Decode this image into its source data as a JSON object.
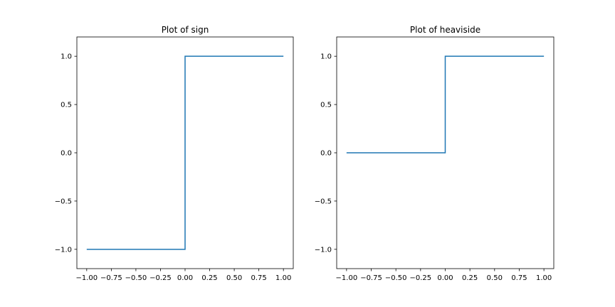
{
  "chart_data": [
    {
      "type": "line",
      "title": "Plot of sign",
      "xlabel": "",
      "ylabel": "",
      "xlim": [
        -1.1,
        1.1
      ],
      "ylim": [
        -1.2,
        1.2
      ],
      "x_ticks": [
        -1.0,
        -0.75,
        -0.5,
        -0.25,
        0.0,
        0.25,
        0.5,
        0.75,
        1.0
      ],
      "x_tick_labels": [
        "−1.00",
        "−0.75",
        "−0.50",
        "−0.25",
        "0.00",
        "0.25",
        "0.50",
        "0.75",
        "1.00"
      ],
      "y_ticks": [
        -1.0,
        -0.5,
        0.0,
        0.5,
        1.0
      ],
      "y_tick_labels": [
        "−1.0",
        "−0.5",
        "0.0",
        "0.5",
        "1.0"
      ],
      "grid": false,
      "series": [
        {
          "x": [
            -1.0,
            0.0,
            0.0,
            1.0
          ],
          "y": [
            -1.0,
            -1.0,
            1.0,
            1.0
          ],
          "color": "#1f77b4"
        }
      ]
    },
    {
      "type": "line",
      "title": "Plot of heaviside",
      "xlabel": "",
      "ylabel": "",
      "xlim": [
        -1.1,
        1.1
      ],
      "ylim": [
        -1.2,
        1.2
      ],
      "x_ticks": [
        -1.0,
        -0.75,
        -0.5,
        -0.25,
        0.0,
        0.25,
        0.5,
        0.75,
        1.0
      ],
      "x_tick_labels": [
        "−1.00",
        "−0.75",
        "−0.50",
        "−0.25",
        "0.00",
        "0.25",
        "0.50",
        "0.75",
        "1.00"
      ],
      "y_ticks": [
        -1.0,
        -0.5,
        0.0,
        0.5,
        1.0
      ],
      "y_tick_labels": [
        "−1.0",
        "−0.5",
        "0.0",
        "0.5",
        "1.0"
      ],
      "grid": false,
      "series": [
        {
          "x": [
            -1.0,
            0.0,
            0.0,
            1.0
          ],
          "y": [
            0.0,
            0.0,
            1.0,
            1.0
          ],
          "color": "#1f77b4"
        }
      ]
    }
  ]
}
